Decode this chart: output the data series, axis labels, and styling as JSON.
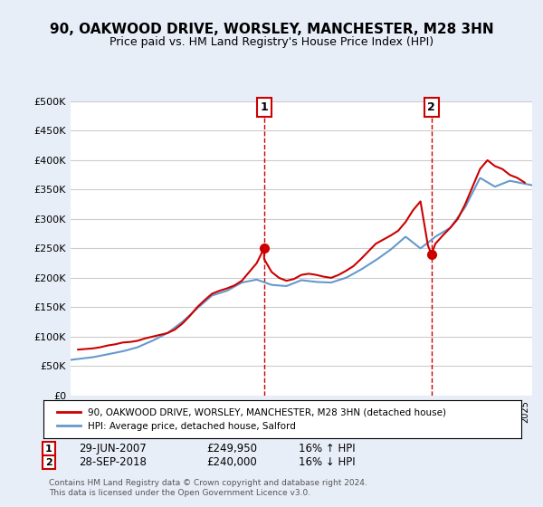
{
  "title": "90, OAKWOOD DRIVE, WORSLEY, MANCHESTER, M28 3HN",
  "subtitle": "Price paid vs. HM Land Registry's House Price Index (HPI)",
  "legend_house": "90, OAKWOOD DRIVE, WORSLEY, MANCHESTER, M28 3HN (detached house)",
  "legend_hpi": "HPI: Average price, detached house, Salford",
  "footer": "Contains HM Land Registry data © Crown copyright and database right 2024.\nThis data is licensed under the Open Government Licence v3.0.",
  "annotation1_label": "1",
  "annotation1_date": "29-JUN-2007",
  "annotation1_price": "£249,950",
  "annotation1_hpi": "16% ↑ HPI",
  "annotation2_label": "2",
  "annotation2_date": "28-SEP-2018",
  "annotation2_price": "£240,000",
  "annotation2_hpi": "16% ↓ HPI",
  "house_color": "#cc0000",
  "hpi_color": "#6699cc",
  "background_color": "#e8eef8",
  "plot_bg_color": "#ffffff",
  "ylim": [
    0,
    500000
  ],
  "yticks": [
    0,
    50000,
    100000,
    150000,
    200000,
    250000,
    300000,
    350000,
    400000,
    450000,
    500000
  ],
  "ytick_labels": [
    "£0",
    "£50K",
    "£100K",
    "£150K",
    "£200K",
    "£250K",
    "£300K",
    "£350K",
    "£400K",
    "£450K",
    "£500K"
  ],
  "sale1_x": 2007.49,
  "sale1_y": 249950,
  "sale2_x": 2018.74,
  "sale2_y": 240000,
  "vline1_x": 2007.49,
  "vline2_x": 2018.74,
  "hpi_years": [
    1995,
    1996,
    1997,
    1998,
    1999,
    2000,
    2001,
    2002,
    2003,
    2004,
    2005,
    2006,
    2007,
    2008,
    2009,
    2010,
    2011,
    2012,
    2013,
    2014,
    2015,
    2016,
    2017,
    2018,
    2019,
    2020,
    2021,
    2022,
    2023,
    2024,
    2025
  ],
  "hpi_values": [
    62000,
    65000,
    70000,
    75000,
    82000,
    93000,
    106000,
    125000,
    148000,
    170000,
    178000,
    192000,
    197000,
    188000,
    186000,
    196000,
    193000,
    192000,
    200000,
    214000,
    230000,
    248000,
    270000,
    250000,
    270000,
    285000,
    320000,
    370000,
    355000,
    365000,
    360000
  ],
  "house_years": [
    1995.0,
    1995.5,
    1996.0,
    1996.5,
    1997.0,
    1997.5,
    1998.0,
    1998.5,
    1999.0,
    1999.5,
    2000.0,
    2000.5,
    2001.0,
    2001.5,
    2002.0,
    2002.5,
    2003.0,
    2003.5,
    2004.0,
    2004.5,
    2005.0,
    2005.5,
    2006.0,
    2006.5,
    2007.0,
    2007.49,
    2007.5,
    2008.0,
    2008.5,
    2009.0,
    2009.5,
    2010.0,
    2010.5,
    2011.0,
    2011.5,
    2012.0,
    2012.5,
    2013.0,
    2013.5,
    2014.0,
    2014.5,
    2015.0,
    2015.5,
    2016.0,
    2016.5,
    2017.0,
    2017.5,
    2018.0,
    2018.5,
    2018.74,
    2019.0,
    2019.5,
    2020.0,
    2020.5,
    2021.0,
    2021.5,
    2022.0,
    2022.5,
    2023.0,
    2023.5,
    2024.0,
    2024.5,
    2025.0
  ],
  "house_values": [
    78000,
    79000,
    80000,
    82000,
    85000,
    87000,
    90000,
    91000,
    93000,
    97000,
    100000,
    103000,
    106000,
    112000,
    122000,
    135000,
    150000,
    162000,
    173000,
    178000,
    182000,
    187000,
    195000,
    210000,
    225000,
    249950,
    232000,
    210000,
    200000,
    195000,
    198000,
    205000,
    207000,
    205000,
    202000,
    200000,
    205000,
    212000,
    220000,
    232000,
    245000,
    258000,
    265000,
    272000,
    280000,
    295000,
    315000,
    330000,
    255000,
    240000,
    258000,
    272000,
    285000,
    300000,
    325000,
    355000,
    385000,
    400000,
    390000,
    385000,
    375000,
    370000,
    362000
  ],
  "xlim_left": 1994.5,
  "xlim_right": 2025.5
}
